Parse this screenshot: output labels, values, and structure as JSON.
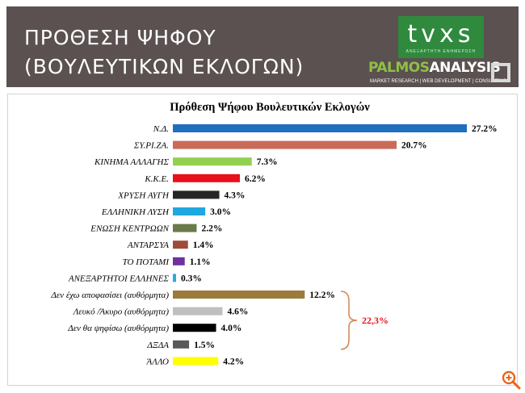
{
  "header": {
    "title_line1": "ΠΡΟΘΕΣΗ ΨΗΦΟΥ",
    "title_line2": "(ΒΟΥΛΕΥΤΙΚΩΝ ΕΚΛΟΓΩΝ)"
  },
  "logos": {
    "tvxs": "tvxs",
    "tvxs_sub": "ΑΝΕΞΑΡΤΗΤΗ ΕΝΗΜΕΡΩΣΗ",
    "palmos_a": "PALMOS",
    "palmos_b": "ANALYSIS",
    "palmos_sub": "MARKET RESEARCH | WEB DEVELOPMENT | CONSULTING"
  },
  "chart_data": {
    "type": "bar",
    "orientation": "horizontal",
    "title": "Πρόθεση Ψήφου Βουλευτικών Εκλογών",
    "categories": [
      "Ν.Δ.",
      "ΣΥ.ΡΙ.ΖΑ.",
      "ΚΙΝΗΜΑ ΑΛΛΑΓΗΣ",
      "Κ.Κ.Ε.",
      "ΧΡΥΣΗ ΑΥΓΗ",
      "ΕΛΛΗΝΙΚΗ ΛΥΣΗ",
      "ΕΝΩΣΗ ΚΕΝΤΡΩΩΝ",
      "ΑΝΤΑΡΣΥΑ",
      "ΤΟ ΠΟΤΑΜΙ",
      "ΑΝΕΞΑΡΤΗΤΟΙ ΕΛΛΗΝΕΣ",
      "Δεν έχω αποφασίσει (αυθόρμητα)",
      "Λευκό /Άκυρο (αυθόρμητα)",
      "Δεν θα ψηφίσω (αυθόρμητα)",
      "ΔΞΔΑ",
      "ΆΛΛΟ"
    ],
    "values": [
      27.2,
      20.7,
      7.3,
      6.2,
      4.3,
      3.0,
      2.2,
      1.4,
      1.1,
      0.3,
      12.2,
      4.6,
      4.0,
      1.5,
      4.2
    ],
    "value_labels": [
      "27.2%",
      "20.7%",
      "7.3%",
      "6.2%",
      "4.3%",
      "3.0%",
      "2.2%",
      "1.4%",
      "1.1%",
      "0.3%",
      "12.2%",
      "4.6%",
      "4.0%",
      "1.5%",
      "4.2%"
    ],
    "colors": [
      "#1f6fbf",
      "#c96b58",
      "#92d050",
      "#e8101a",
      "#262626",
      "#1fa7e0",
      "#6a7a48",
      "#a04a3a",
      "#7030a0",
      "#29abe2",
      "#9c7a3c",
      "#bfbfbf",
      "#000000",
      "#595959",
      "#ffff00"
    ],
    "xlim": [
      0,
      27.2
    ],
    "grid": false,
    "legend": "none",
    "annotation": {
      "text": "22,3%",
      "color": "#e8101a",
      "bracket_color": "#d68a5a"
    }
  }
}
